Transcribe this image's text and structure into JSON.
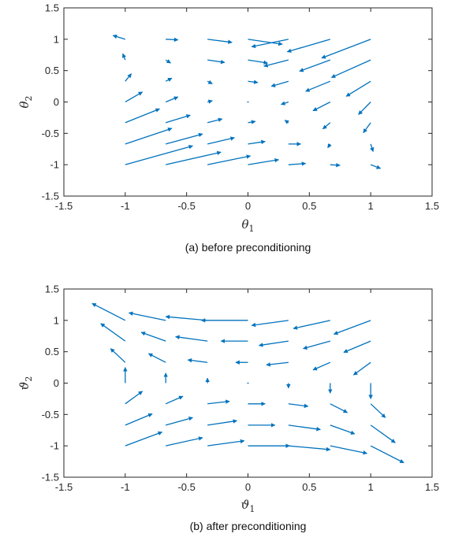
{
  "chart_data": [
    {
      "type": "quiver",
      "title": "",
      "caption": "(a) before preconditioning",
      "xlabel": "θ",
      "xlabel_sub": "1",
      "ylabel": "θ",
      "ylabel_sub": "2",
      "xlim": [
        -1.5,
        1.5
      ],
      "ylim": [
        -1.5,
        1.5
      ],
      "xticks": [
        "-1.5",
        "-1",
        "-0.5",
        "0",
        "0.5",
        "1",
        "1.5"
      ],
      "yticks": [
        "-1.5",
        "-1",
        "-0.5",
        "0",
        "0.5",
        "1",
        "1.5"
      ],
      "grid": false,
      "arrow_color": "#0072BD",
      "arrows": [
        {
          "x": -1,
          "y": -1,
          "u": 0.55,
          "v": 0.3
        },
        {
          "x": -1,
          "y": -0.67,
          "u": 0.38,
          "v": 0.25
        },
        {
          "x": -1,
          "y": -0.33,
          "u": 0.28,
          "v": 0.22
        },
        {
          "x": -1,
          "y": 0,
          "u": 0.14,
          "v": 0.16
        },
        {
          "x": -1,
          "y": 0.33,
          "u": 0.05,
          "v": 0.12
        },
        {
          "x": -1,
          "y": 0.67,
          "u": -0.02,
          "v": 0.1
        },
        {
          "x": -1,
          "y": 1,
          "u": -0.1,
          "v": 0.06
        },
        {
          "x": -0.67,
          "y": -1,
          "u": 0.45,
          "v": 0.2
        },
        {
          "x": -0.67,
          "y": -0.67,
          "u": 0.3,
          "v": 0.16
        },
        {
          "x": -0.67,
          "y": -0.33,
          "u": 0.2,
          "v": 0.12
        },
        {
          "x": -0.67,
          "y": 0,
          "u": 0.1,
          "v": 0.08
        },
        {
          "x": -0.67,
          "y": 0.33,
          "u": 0.05,
          "v": 0.05
        },
        {
          "x": -0.67,
          "y": 0.67,
          "u": 0.04,
          "v": -0.05
        },
        {
          "x": -0.67,
          "y": 1,
          "u": 0.1,
          "v": -0.01
        },
        {
          "x": -0.33,
          "y": -1,
          "u": 0.35,
          "v": 0.14
        },
        {
          "x": -0.33,
          "y": -0.67,
          "u": 0.22,
          "v": 0.1
        },
        {
          "x": -0.33,
          "y": -0.33,
          "u": 0.12,
          "v": 0.06
        },
        {
          "x": -0.33,
          "y": 0,
          "u": 0.04,
          "v": 0.02
        },
        {
          "x": -0.33,
          "y": 0.33,
          "u": 0.04,
          "v": -0.04
        },
        {
          "x": -0.33,
          "y": 0.67,
          "u": 0.14,
          "v": -0.04
        },
        {
          "x": -0.33,
          "y": 1,
          "u": 0.2,
          "v": -0.05
        },
        {
          "x": 0,
          "y": -1,
          "u": 0.25,
          "v": 0.08
        },
        {
          "x": 0,
          "y": -0.67,
          "u": 0.14,
          "v": 0.04
        },
        {
          "x": 0,
          "y": -0.33,
          "u": 0.06,
          "v": 0.02
        },
        {
          "x": 0,
          "y": 0,
          "u": 0.0,
          "v": 0.0
        },
        {
          "x": 0,
          "y": 0.33,
          "u": 0.08,
          "v": -0.02
        },
        {
          "x": 0,
          "y": 0.67,
          "u": 0.16,
          "v": -0.05
        },
        {
          "x": 0,
          "y": 1,
          "u": 0.28,
          "v": -0.08
        },
        {
          "x": 0.33,
          "y": -1,
          "u": 0.14,
          "v": 0.02
        },
        {
          "x": 0.33,
          "y": -0.67,
          "u": 0.1,
          "v": 0.0
        },
        {
          "x": 0.33,
          "y": -0.33,
          "u": -0.03,
          "v": 0.04
        },
        {
          "x": 0.33,
          "y": 0,
          "u": -0.06,
          "v": -0.04
        },
        {
          "x": 0.33,
          "y": 0.33,
          "u": -0.14,
          "v": -0.08
        },
        {
          "x": 0.33,
          "y": 0.67,
          "u": -0.2,
          "v": -0.1
        },
        {
          "x": 0.33,
          "y": 1,
          "u": -0.3,
          "v": -0.12
        },
        {
          "x": 0.67,
          "y": -1,
          "u": 0.08,
          "v": -0.01
        },
        {
          "x": 0.67,
          "y": -0.67,
          "u": -0.02,
          "v": -0.06
        },
        {
          "x": 0.67,
          "y": -0.33,
          "u": -0.06,
          "v": -0.1
        },
        {
          "x": 0.67,
          "y": 0,
          "u": -0.14,
          "v": -0.14
        },
        {
          "x": 0.67,
          "y": 0.33,
          "u": -0.2,
          "v": -0.16
        },
        {
          "x": 0.67,
          "y": 0.67,
          "u": -0.25,
          "v": -0.18
        },
        {
          "x": 0.67,
          "y": 1,
          "u": -0.35,
          "v": -0.2
        },
        {
          "x": 1,
          "y": -1,
          "u": 0.08,
          "v": -0.06
        },
        {
          "x": 1,
          "y": -0.67,
          "u": 0.02,
          "v": -0.12
        },
        {
          "x": 1,
          "y": -0.33,
          "u": -0.06,
          "v": -0.16
        },
        {
          "x": 1,
          "y": 0,
          "u": -0.1,
          "v": -0.2
        },
        {
          "x": 1,
          "y": 0.33,
          "u": -0.2,
          "v": -0.24
        },
        {
          "x": 1,
          "y": 0.67,
          "u": -0.32,
          "v": -0.28
        },
        {
          "x": 1,
          "y": 1,
          "u": -0.4,
          "v": -0.3
        }
      ]
    },
    {
      "type": "quiver",
      "title": "",
      "caption": "(b) after preconditioning",
      "xlabel": "ϑ",
      "xlabel_sub": "1",
      "ylabel": "ϑ",
      "ylabel_sub": "2",
      "xlim": [
        -1.5,
        1.5
      ],
      "ylim": [
        -1.5,
        1.5
      ],
      "xticks": [
        "-1.5",
        "-1",
        "-0.5",
        "0",
        "0.5",
        "1",
        "1.5"
      ],
      "yticks": [
        "-1.5",
        "-1",
        "-0.5",
        "0",
        "0.5",
        "1",
        "1.5"
      ],
      "grid": false,
      "arrow_color": "#0072BD",
      "arrows": [
        {
          "x": -1,
          "y": -1,
          "u": 0.3,
          "v": 0.22
        },
        {
          "x": -1,
          "y": -0.67,
          "u": 0.22,
          "v": 0.18
        },
        {
          "x": -1,
          "y": -0.33,
          "u": 0.14,
          "v": 0.2
        },
        {
          "x": -1,
          "y": 0,
          "u": 0.0,
          "v": 0.25
        },
        {
          "x": -1,
          "y": 0.33,
          "u": -0.12,
          "v": 0.22
        },
        {
          "x": -1,
          "y": 0.67,
          "u": -0.2,
          "v": 0.28
        },
        {
          "x": -1.0,
          "y": 1.0,
          "u": -0.27,
          "v": 0.27
        },
        {
          "x": -0.67,
          "y": -1,
          "u": 0.3,
          "v": 0.13
        },
        {
          "x": -0.67,
          "y": -0.67,
          "u": 0.22,
          "v": 0.12
        },
        {
          "x": -0.67,
          "y": -0.33,
          "u": 0.14,
          "v": 0.12
        },
        {
          "x": -0.67,
          "y": 0,
          "u": 0.0,
          "v": 0.16
        },
        {
          "x": -0.67,
          "y": 0.33,
          "u": -0.14,
          "v": 0.14
        },
        {
          "x": -0.67,
          "y": 0.67,
          "u": -0.2,
          "v": 0.14
        },
        {
          "x": -0.67,
          "y": 1,
          "u": -0.3,
          "v": 0.12
        },
        {
          "x": -0.33,
          "y": -1,
          "u": 0.3,
          "v": 0.08
        },
        {
          "x": -0.33,
          "y": -0.67,
          "u": 0.24,
          "v": 0.07
        },
        {
          "x": -0.33,
          "y": -0.33,
          "u": 0.18,
          "v": 0.04
        },
        {
          "x": -0.33,
          "y": 0,
          "u": 0.0,
          "v": 0.08
        },
        {
          "x": -0.33,
          "y": 0.33,
          "u": -0.16,
          "v": 0.04
        },
        {
          "x": -0.33,
          "y": 0.67,
          "u": -0.26,
          "v": 0.07
        },
        {
          "x": -0.33,
          "y": 1,
          "u": -0.34,
          "v": 0.06
        },
        {
          "x": 0,
          "y": -1,
          "u": 0.34,
          "v": 0.0
        },
        {
          "x": 0,
          "y": -0.67,
          "u": 0.22,
          "v": 0.0
        },
        {
          "x": 0,
          "y": -0.33,
          "u": 0.14,
          "v": 0.0
        },
        {
          "x": 0,
          "y": 0,
          "u": 0.0,
          "v": 0.0
        },
        {
          "x": 0,
          "y": 0.33,
          "u": -0.1,
          "v": 0.0
        },
        {
          "x": 0,
          "y": 0.67,
          "u": -0.22,
          "v": 0.0
        },
        {
          "x": 0,
          "y": 1,
          "u": -0.38,
          "v": 0.0
        },
        {
          "x": 0.33,
          "y": -1,
          "u": 0.34,
          "v": -0.06
        },
        {
          "x": 0.33,
          "y": -0.67,
          "u": 0.26,
          "v": -0.07
        },
        {
          "x": 0.33,
          "y": -0.33,
          "u": 0.16,
          "v": -0.04
        },
        {
          "x": 0.33,
          "y": 0,
          "u": 0.0,
          "v": -0.08
        },
        {
          "x": 0.33,
          "y": 0.33,
          "u": -0.18,
          "v": -0.04
        },
        {
          "x": 0.33,
          "y": 0.67,
          "u": -0.24,
          "v": -0.07
        },
        {
          "x": 0.33,
          "y": 1,
          "u": -0.3,
          "v": -0.08
        },
        {
          "x": 0.67,
          "y": -1,
          "u": 0.3,
          "v": -0.12
        },
        {
          "x": 0.67,
          "y": -0.67,
          "u": 0.2,
          "v": -0.14
        },
        {
          "x": 0.67,
          "y": -0.33,
          "u": 0.14,
          "v": -0.14
        },
        {
          "x": 0.67,
          "y": 0,
          "u": 0.0,
          "v": -0.16
        },
        {
          "x": 0.67,
          "y": 0.33,
          "u": -0.14,
          "v": -0.12
        },
        {
          "x": 0.67,
          "y": 0.67,
          "u": -0.22,
          "v": -0.12
        },
        {
          "x": 0.67,
          "y": 1,
          "u": -0.3,
          "v": -0.13
        },
        {
          "x": 1.0,
          "y": -1.0,
          "u": 0.27,
          "v": -0.27
        },
        {
          "x": 1,
          "y": -0.67,
          "u": 0.2,
          "v": -0.28
        },
        {
          "x": 1,
          "y": -0.33,
          "u": 0.12,
          "v": -0.22
        },
        {
          "x": 1,
          "y": 0,
          "u": 0.0,
          "v": -0.25
        },
        {
          "x": 1,
          "y": 0.33,
          "u": -0.14,
          "v": -0.2
        },
        {
          "x": 1,
          "y": 0.67,
          "u": -0.22,
          "v": -0.18
        },
        {
          "x": 1,
          "y": 1,
          "u": -0.3,
          "v": -0.22
        }
      ]
    }
  ]
}
